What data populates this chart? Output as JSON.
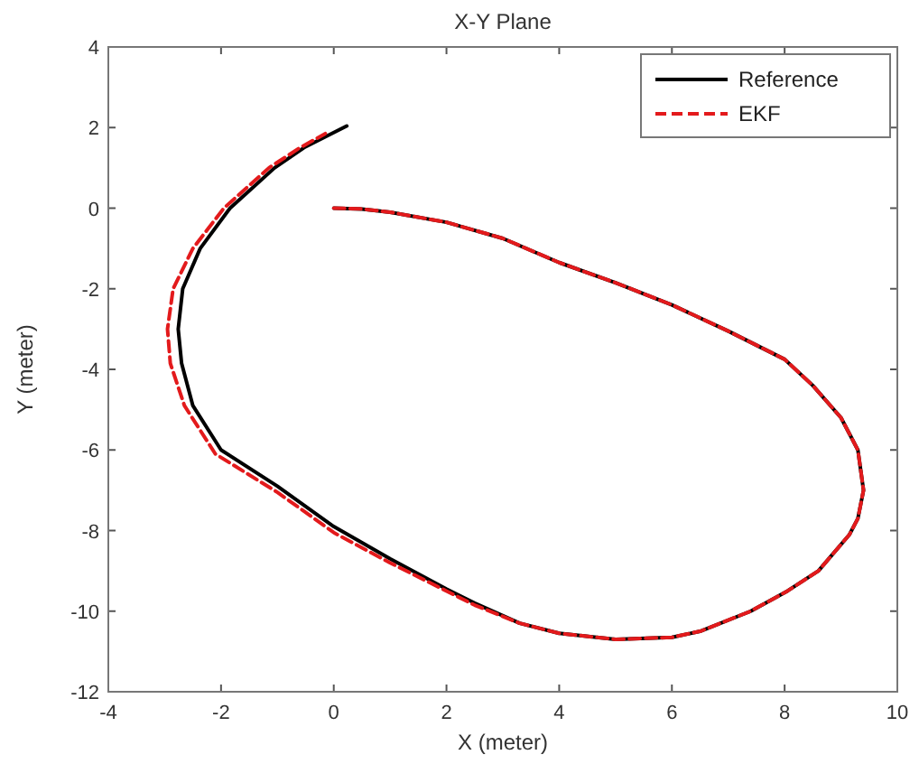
{
  "chart_data": {
    "type": "line",
    "title": "X-Y Plane",
    "xlabel": "X (meter)",
    "ylabel": "Y (meter)",
    "xlim": [
      -4,
      10
    ],
    "ylim": [
      -12,
      4
    ],
    "xticks": [
      -4,
      -2,
      0,
      2,
      4,
      6,
      8,
      10
    ],
    "yticks": [
      -12,
      -10,
      -8,
      -6,
      -4,
      -2,
      0,
      2,
      4
    ],
    "grid": false,
    "legend": "top right",
    "marker": "none",
    "series": [
      {
        "name": "Reference",
        "color": "#000000",
        "line_style": "solid",
        "x": [
          0,
          0.5,
          1,
          2,
          3,
          4,
          5,
          6,
          7,
          8,
          8.5,
          9,
          9.3,
          9.4,
          9.3,
          9.15,
          8.6,
          8.05,
          7.4,
          6.5,
          6,
          5,
          4,
          3.3,
          2.5,
          2,
          1,
          0,
          -1,
          -2,
          -2.5,
          -2.7,
          -2.76,
          -2.68,
          -2.37,
          -1.84,
          -1.05,
          -0.53,
          0.23
        ],
        "values": [
          0,
          -0.02,
          -0.1,
          -0.35,
          -0.75,
          -1.35,
          -1.85,
          -2.4,
          -3.05,
          -3.75,
          -4.4,
          -5.2,
          -6,
          -7,
          -7.7,
          -8.1,
          -9,
          -9.5,
          -10,
          -10.5,
          -10.65,
          -10.7,
          -10.55,
          -10.3,
          -9.8,
          -9.45,
          -8.7,
          -7.9,
          -6.9,
          -6,
          -4.9,
          -3.85,
          -3,
          -2,
          -1,
          0,
          1,
          1.5,
          2.04
        ]
      },
      {
        "name": "EKF",
        "color": "#e31a1c",
        "line_style": "dashed",
        "x": [
          0,
          0.5,
          1,
          2,
          3,
          4,
          5,
          6,
          7,
          8,
          8.5,
          9,
          9.3,
          9.4,
          9.3,
          9.15,
          8.6,
          8.05,
          7.4,
          6.5,
          6,
          5,
          4,
          3.3,
          2.5,
          2,
          1,
          0,
          -1,
          -2.1,
          -2.65,
          -2.9,
          -2.95,
          -2.85,
          -2.5,
          -1.95,
          -1.15,
          -0.6,
          -0.15
        ],
        "values": [
          0,
          -0.02,
          -0.1,
          -0.35,
          -0.75,
          -1.35,
          -1.85,
          -2.4,
          -3.05,
          -3.75,
          -4.4,
          -5.2,
          -6,
          -7,
          -7.7,
          -8.1,
          -9,
          -9.5,
          -10,
          -10.5,
          -10.65,
          -10.7,
          -10.55,
          -10.3,
          -9.85,
          -9.5,
          -8.8,
          -8.05,
          -7.05,
          -6.1,
          -4.9,
          -3.85,
          -3,
          -2,
          -1,
          0,
          1,
          1.5,
          1.85
        ]
      }
    ]
  }
}
